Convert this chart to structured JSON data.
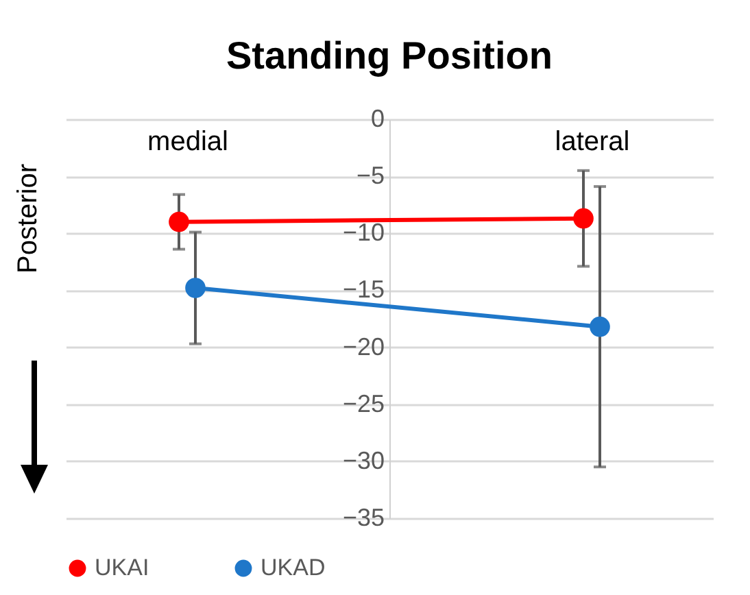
{
  "chart_data": {
    "type": "line",
    "title": "Standing Position",
    "ylabel": "Posterior",
    "categories": [
      "medial",
      "lateral"
    ],
    "series": [
      {
        "name": "UKAI",
        "color": "#ff0000",
        "values": [
          -9.0,
          -8.7
        ],
        "errors": [
          2.4,
          4.2
        ]
      },
      {
        "name": "UKAD",
        "color": "#1f77c9",
        "values": [
          -14.8,
          -18.2
        ],
        "errors": [
          4.9,
          12.3
        ]
      }
    ],
    "ylim": [
      -35,
      0
    ],
    "yticks": [
      -35,
      -30,
      -25,
      -20,
      -15,
      -10,
      -5,
      0
    ],
    "grid": "y",
    "legend": "bottom",
    "marker": "circle",
    "line_style": "solid"
  }
}
